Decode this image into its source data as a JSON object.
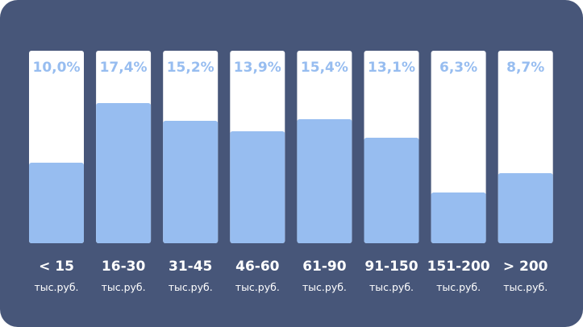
{
  "chart_data": {
    "type": "bar",
    "categories": [
      "< 15",
      "16-30",
      "31-45",
      "46-60",
      "61-90",
      "91-150",
      "151-200",
      "> 200"
    ],
    "unit_label": "тыс.руб.",
    "values": [
      10.0,
      17.4,
      15.2,
      13.9,
      15.4,
      13.1,
      6.3,
      8.7
    ],
    "value_labels": [
      "10,0%",
      "17,4%",
      "15,2%",
      "13,9%",
      "15,4%",
      "13,1%",
      "6,3%",
      "8,7%"
    ],
    "title": "",
    "xlabel": "",
    "ylabel": "",
    "grid": false,
    "legend": "none"
  },
  "colors": {
    "background": "#475679",
    "track": "#ffffff",
    "bar": "#97bdf0",
    "value_text": "#97bdf0",
    "label_text": "#ffffff"
  }
}
